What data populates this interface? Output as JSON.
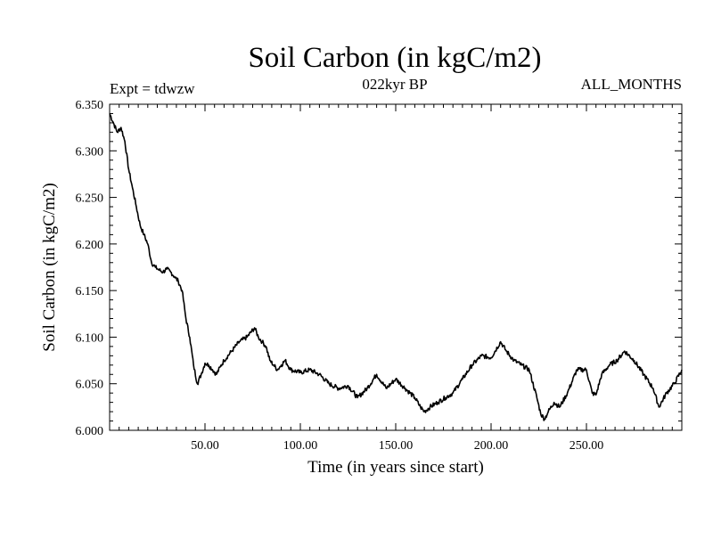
{
  "chart_data": {
    "type": "line",
    "title": "Soil Carbon (in kgC/m2)",
    "expt_label": "Expt = tdwzw",
    "subtitle": "022kyr BP",
    "months_label": "ALL_MONTHS",
    "xlabel": "Time (in years since start)",
    "ylabel": "Soil Carbon (in kgC/m2)",
    "xlim": [
      0,
      300
    ],
    "ylim": [
      6.0,
      6.35
    ],
    "xticks": [
      50,
      100,
      150,
      200,
      250
    ],
    "xtick_labels": [
      "50.00",
      "100.00",
      "150.00",
      "200.00",
      "250.00"
    ],
    "yticks": [
      6.0,
      6.05,
      6.1,
      6.15,
      6.2,
      6.25,
      6.3,
      6.35
    ],
    "ytick_labels": [
      "6.000",
      "6.050",
      "6.100",
      "6.150",
      "6.200",
      "6.250",
      "6.300",
      "6.350"
    ],
    "line_color": "#000000",
    "series": [
      {
        "name": "Soil Carbon",
        "x": [
          0,
          2,
          4,
          6,
          8,
          10,
          12,
          14,
          16,
          18,
          20,
          22,
          24,
          26,
          28,
          30,
          32,
          34,
          36,
          38,
          40,
          42,
          44,
          46,
          48,
          50,
          52,
          54,
          56,
          58,
          60,
          64,
          68,
          72,
          76,
          78,
          80,
          82,
          84,
          86,
          88,
          90,
          92,
          95,
          100,
          105,
          110,
          115,
          120,
          125,
          130,
          135,
          140,
          145,
          150,
          155,
          160,
          163,
          165,
          168,
          172,
          176,
          180,
          185,
          190,
          195,
          200,
          205,
          208,
          212,
          216,
          220,
          224,
          226,
          228,
          230,
          233,
          236,
          240,
          245,
          250,
          253,
          255,
          258,
          262,
          266,
          270,
          275,
          280,
          285,
          288,
          292,
          296,
          300
        ],
        "values": [
          6.34,
          6.33,
          6.32,
          6.325,
          6.31,
          6.28,
          6.26,
          6.24,
          6.22,
          6.21,
          6.2,
          6.18,
          6.175,
          6.172,
          6.17,
          6.173,
          6.17,
          6.165,
          6.16,
          6.15,
          6.12,
          6.1,
          6.07,
          6.05,
          6.06,
          6.072,
          6.07,
          6.065,
          6.06,
          6.068,
          6.075,
          6.085,
          6.095,
          6.1,
          6.11,
          6.1,
          6.095,
          6.09,
          6.075,
          6.07,
          6.065,
          6.07,
          6.075,
          6.065,
          6.062,
          6.065,
          6.06,
          6.05,
          6.045,
          6.048,
          6.035,
          6.045,
          6.06,
          6.045,
          6.055,
          6.045,
          6.035,
          6.025,
          6.02,
          6.025,
          6.03,
          6.035,
          6.04,
          6.055,
          6.07,
          6.08,
          6.078,
          6.095,
          6.085,
          6.075,
          6.07,
          6.065,
          6.035,
          6.018,
          6.012,
          6.02,
          6.03,
          6.025,
          6.04,
          6.065,
          6.065,
          6.04,
          6.038,
          6.06,
          6.07,
          6.075,
          6.085,
          6.075,
          6.06,
          6.045,
          6.025,
          6.04,
          6.05,
          6.065
        ]
      }
    ]
  }
}
